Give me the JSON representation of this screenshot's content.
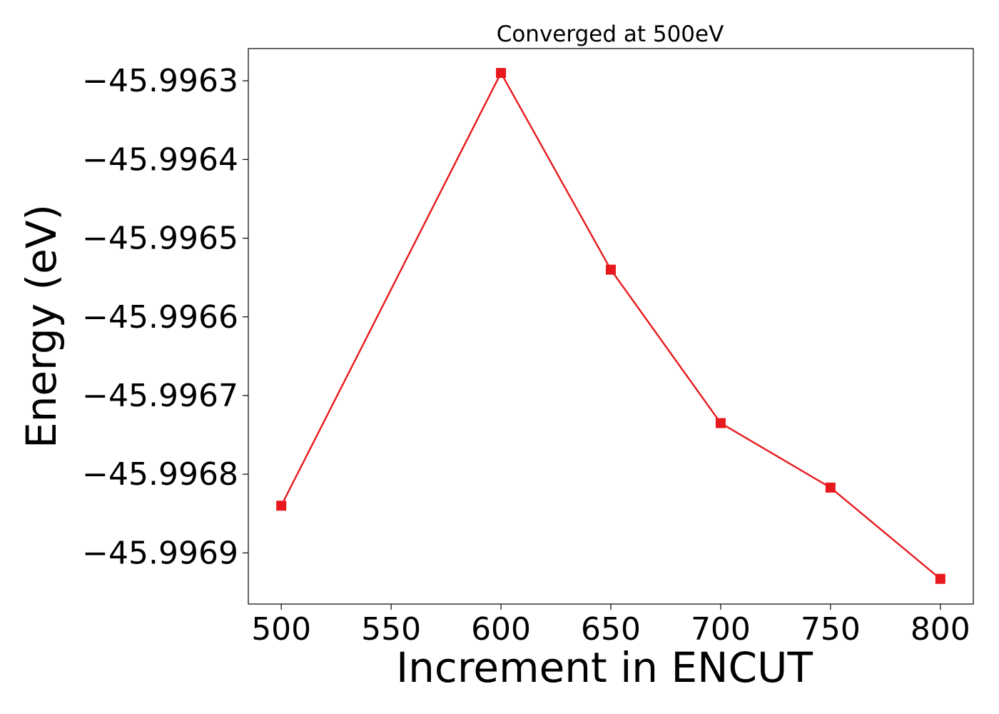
{
  "chart_data": {
    "type": "line",
    "title": "Converged at 500eV",
    "xlabel": "Increment in ENCUT",
    "ylabel": "Energy (eV)",
    "x": [
      500,
      600,
      650,
      700,
      750,
      800
    ],
    "series": [
      {
        "values": [
          -45.99684,
          -45.99629,
          -45.99654,
          -45.996735,
          -45.996817,
          -45.996933
        ],
        "color": "#e8191c",
        "marker": "square"
      }
    ],
    "xlim": [
      485,
      815
    ],
    "ylim": [
      -45.996965,
      -45.996259
    ],
    "x_ticks": [
      500,
      550,
      600,
      650,
      700,
      750,
      800
    ],
    "x_tick_labels": [
      "500",
      "550",
      "600",
      "650",
      "700",
      "750",
      "800"
    ],
    "y_ticks": [
      -45.9963,
      -45.9964,
      -45.9965,
      -45.9966,
      -45.9967,
      -45.9968,
      -45.9969
    ],
    "y_tick_labels": [
      "−45.9963",
      "−45.9964",
      "−45.9965",
      "−45.9966",
      "−45.9967",
      "−45.9968",
      "−45.9969"
    ],
    "grid": false,
    "legend": "none"
  }
}
